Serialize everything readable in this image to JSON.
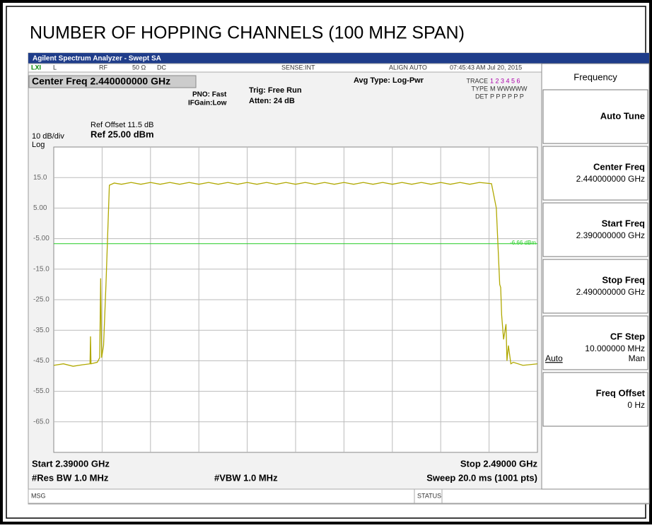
{
  "ui": {
    "page_title": "NUMBER OF HOPPING CHANNELS (100 MHZ SPAN)",
    "window_title": "Agilent Spectrum Analyzer - Swept SA",
    "status": {
      "l": "L",
      "rf": "RF",
      "imp": "50 Ω",
      "dc": "DC",
      "sense": "SENSE:INT",
      "align": "ALIGN AUTO",
      "time": "07:45:43 AM Jul 20, 2015"
    },
    "center_freq": "Center Freq 2.440000000 GHz",
    "pno": "PNO: Fast",
    "ifgain": "IFGain:Low",
    "trig": "Trig: Free Run",
    "atten": "Atten: 24 dB",
    "avg": "Avg Type: Log-Pwr",
    "trace": {
      "trace_label": "TRACE",
      "trace_nums": "1 2 3 4 5 6",
      "type_label": "TYPE",
      "type_vals": "M WWWWW",
      "det_label": "DET",
      "det_vals": "P P P P P P"
    },
    "ref_offset": "Ref Offset 11.5 dB",
    "scale": "10 dB/div",
    "ref_level": "Ref 25.00 dBm",
    "log": "Log",
    "start": "Start 2.39000 GHz",
    "stop": "Stop 2.49000 GHz",
    "rbw": "#Res BW 1.0 MHz",
    "vbw": "#VBW 1.0 MHz",
    "sweep": "Sweep  20.0 ms (1001 pts)",
    "msg": "MSG",
    "status_label": "STATUS",
    "menu_title": "Frequency",
    "softkeys": [
      {
        "label": "Auto Tune"
      },
      {
        "label": "Center Freq",
        "value": "2.440000000 GHz"
      },
      {
        "label": "Start Freq",
        "value": "2.390000000 GHz"
      },
      {
        "label": "Stop Freq",
        "value": "2.490000000 GHz"
      },
      {
        "label": "CF Step",
        "value": "10.000000 MHz",
        "auto": "Auto",
        "man": "Man"
      },
      {
        "label": "Freq Offset",
        "value": "0 Hz"
      }
    ]
  },
  "chart_data": {
    "type": "line",
    "xlim": [
      2.39,
      2.49
    ],
    "ylim": [
      -75,
      25
    ],
    "yticks": [
      {
        "value": 15,
        "label": "15.0"
      },
      {
        "value": 5,
        "label": "5.00"
      },
      {
        "value": -5,
        "label": "-5.00"
      },
      {
        "value": -15,
        "label": "-15.0"
      },
      {
        "value": -25,
        "label": "-25.0"
      },
      {
        "value": -35,
        "label": "-35.0"
      },
      {
        "value": -45,
        "label": "-45.0"
      },
      {
        "value": -55,
        "label": "-55.0"
      },
      {
        "value": -65,
        "label": "-65.0"
      }
    ],
    "grid": true,
    "display_line": {
      "value": -6.66,
      "label": "-6.66 dBm",
      "color": "#22cc22"
    },
    "x": [
      2.39,
      2.392,
      2.394,
      2.396,
      2.3975,
      2.3976,
      2.3977,
      2.399,
      2.3995,
      2.3997,
      2.3999,
      2.4003,
      2.4008,
      2.4015,
      2.4025,
      2.404,
      2.406,
      2.408,
      2.41,
      2.412,
      2.414,
      2.416,
      2.418,
      2.42,
      2.422,
      2.424,
      2.426,
      2.428,
      2.43,
      2.432,
      2.434,
      2.436,
      2.438,
      2.44,
      2.442,
      2.444,
      2.446,
      2.448,
      2.45,
      2.452,
      2.454,
      2.456,
      2.458,
      2.46,
      2.462,
      2.464,
      2.466,
      2.468,
      2.47,
      2.472,
      2.474,
      2.476,
      2.478,
      2.4805,
      2.4815,
      2.4822,
      2.4824,
      2.4826,
      2.483,
      2.4835,
      2.4837,
      2.484,
      2.4845,
      2.485,
      2.487,
      2.49
    ],
    "series": [
      {
        "color": "#b0a800",
        "values": [
          -46.5,
          -46,
          -46.8,
          -46.3,
          -46,
          -37,
          -46,
          -45.5,
          -44,
          -18,
          -44,
          -40,
          -20,
          12.5,
          13.2,
          12.8,
          13.4,
          12.8,
          13.4,
          12.8,
          13.4,
          12.8,
          13.4,
          12.8,
          13.4,
          12.8,
          13.4,
          12.8,
          13.4,
          12.8,
          13.4,
          12.8,
          13.4,
          12.8,
          13.4,
          12.8,
          13.4,
          12.8,
          13.4,
          12.8,
          13.4,
          12.8,
          13.4,
          12.8,
          13.4,
          12.8,
          13.4,
          12.8,
          13.4,
          12.8,
          13.4,
          12.8,
          13.4,
          13,
          5,
          -20,
          -21,
          -30,
          -38,
          -33,
          -45,
          -40,
          -46,
          -45.5,
          -46.5,
          -46
        ]
      }
    ]
  }
}
